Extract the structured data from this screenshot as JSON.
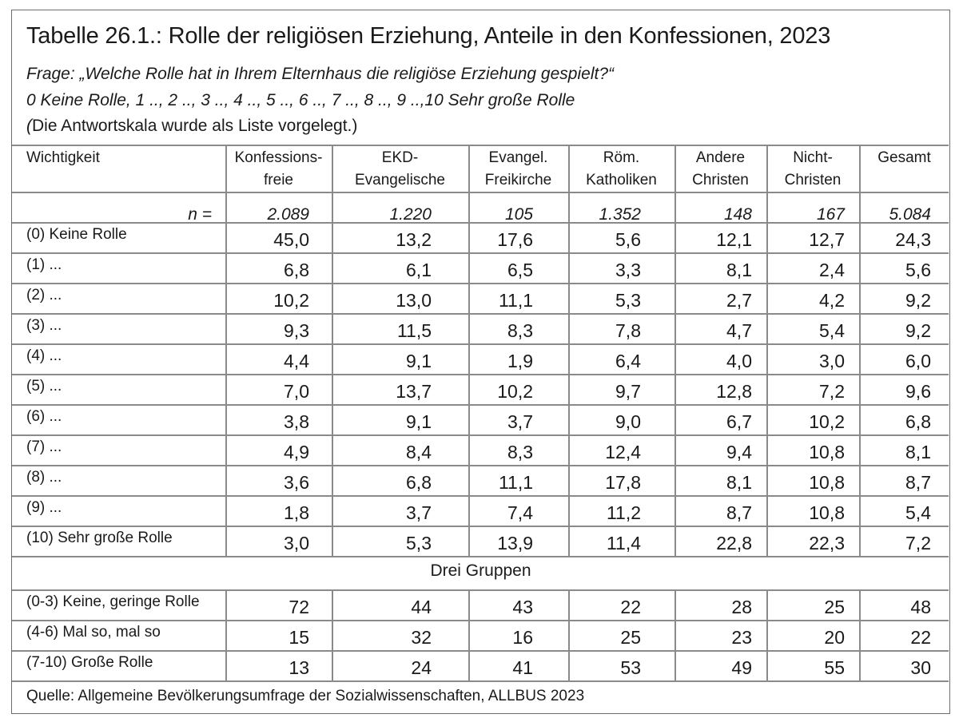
{
  "title": "Tabelle 26.1.: Rolle der religiösen Erziehung, Anteile in den Konfessionen, 2023",
  "question": {
    "line1": "Frage: „Welche Rolle hat in Ihrem Elternhaus die religiöse Erziehung gespielt?“",
    "line2": "0 Keine Rolle, 1 .., 2 .., 3 .., 4 .., 5 .., 6 .., 7 .., 8 .., 9 ..,10 Sehr große Rolle",
    "line3_open": "(",
    "line3_rest": "Die Antwortskala wurde als Liste vorgelegt.)"
  },
  "table": {
    "corner_label": "Wichtigkeit",
    "columns": [
      [
        "Konfessions-",
        "freie"
      ],
      [
        "EKD-",
        "Evangelische"
      ],
      [
        "Evangel.",
        "Freikirche"
      ],
      [
        "Röm.",
        "Katholiken"
      ],
      [
        "Andere",
        "Christen"
      ],
      [
        "Nicht-",
        "Christen"
      ],
      [
        "Gesamt"
      ]
    ],
    "n_label": "n =",
    "n_values": [
      "2.089",
      "1.220",
      "105",
      "1.352",
      "148",
      "167",
      "5.084"
    ],
    "rows": [
      {
        "label": "(0) Keine Rolle",
        "values": [
          "45,0",
          "13,2",
          "17,6",
          "5,6",
          "12,1",
          "12,7",
          "24,3"
        ]
      },
      {
        "label": "(1) ...",
        "values": [
          "6,8",
          "6,1",
          "6,5",
          "3,3",
          "8,1",
          "2,4",
          "5,6"
        ]
      },
      {
        "label": "(2) ...",
        "values": [
          "10,2",
          "13,0",
          "11,1",
          "5,3",
          "2,7",
          "4,2",
          "9,2"
        ]
      },
      {
        "label": "(3) ...",
        "values": [
          "9,3",
          "11,5",
          "8,3",
          "7,8",
          "4,7",
          "5,4",
          "9,2"
        ]
      },
      {
        "label": "(4) ...",
        "values": [
          "4,4",
          "9,1",
          "1,9",
          "6,4",
          "4,0",
          "3,0",
          "6,0"
        ]
      },
      {
        "label": "(5) ...",
        "values": [
          "7,0",
          "13,7",
          "10,2",
          "9,7",
          "12,8",
          "7,2",
          "9,6"
        ]
      },
      {
        "label": "(6) ...",
        "values": [
          "3,8",
          "9,1",
          "3,7",
          "9,0",
          "6,7",
          "10,2",
          "6,8"
        ]
      },
      {
        "label": "(7) ...",
        "values": [
          "4,9",
          "8,4",
          "8,3",
          "12,4",
          "9,4",
          "10,8",
          "8,1"
        ]
      },
      {
        "label": "(8) ...",
        "values": [
          "3,6",
          "6,8",
          "11,1",
          "17,8",
          "8,1",
          "10,8",
          "8,7"
        ]
      },
      {
        "label": "(9) ...",
        "values": [
          "1,8",
          "3,7",
          "7,4",
          "11,2",
          "8,7",
          "10,8",
          "5,4"
        ]
      },
      {
        "label": "(10) Sehr große Rolle",
        "values": [
          "3,0",
          "5,3",
          "13,9",
          "11,4",
          "22,8",
          "22,3",
          "7,2"
        ]
      }
    ],
    "subheader": "Drei Gruppen",
    "group_rows": [
      {
        "label": "(0-3) Keine, geringe Rolle",
        "values": [
          "72",
          "44",
          "43",
          "22",
          "28",
          "25",
          "48"
        ]
      },
      {
        "label": "(4-6) Mal so, mal so",
        "values": [
          "15",
          "32",
          "16",
          "25",
          "23",
          "20",
          "22"
        ]
      },
      {
        "label": "(7-10) Große Rolle",
        "values": [
          "13",
          "24",
          "41",
          "53",
          "49",
          "55",
          "30"
        ]
      }
    ]
  },
  "source": "Quelle: Allgemeine Bevölkerungsumfrage der Sozialwissenschaften, ALLBUS 2023"
}
